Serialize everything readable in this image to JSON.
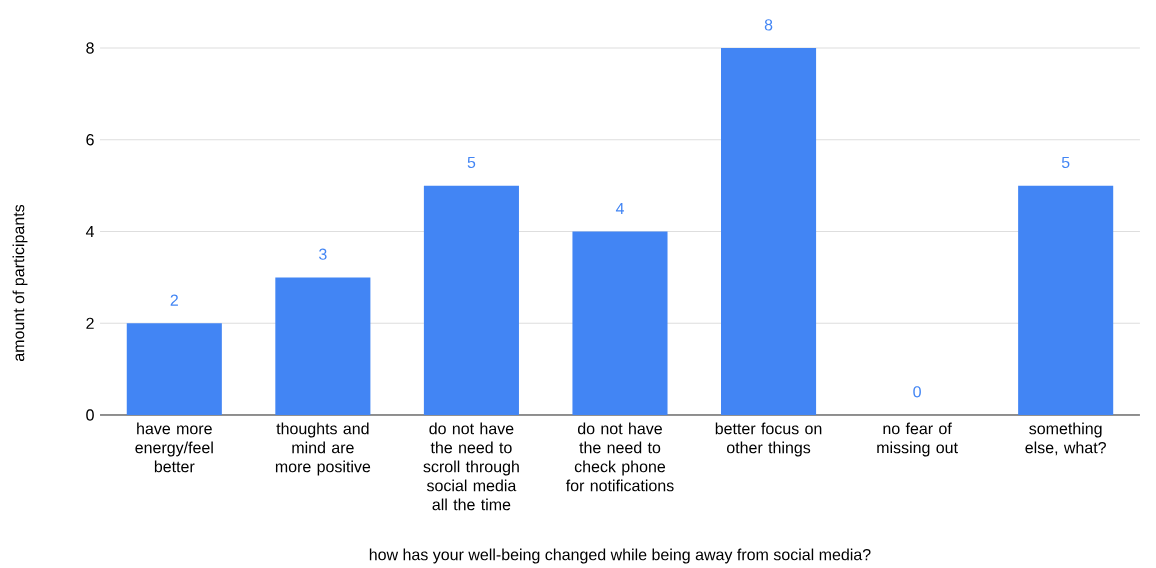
{
  "chart_data": {
    "type": "bar",
    "xlabel": "how has your well-being changed while being away from social media?",
    "ylabel": "amount of participants",
    "categories": [
      "have more energy/feel better",
      "thoughts and mind are more positive",
      "do not have the need to scroll through social media all the time",
      "do not have the need to check phone for notifications",
      "better focus on other things",
      "no fear of missing out",
      "something else, what?"
    ],
    "values": [
      2,
      3,
      5,
      4,
      8,
      0,
      5
    ],
    "color": "#4285f4",
    "ylim": [
      0,
      8
    ],
    "yticks": [
      0,
      2,
      4,
      6,
      8
    ],
    "grid": "y",
    "data_labels": true
  }
}
